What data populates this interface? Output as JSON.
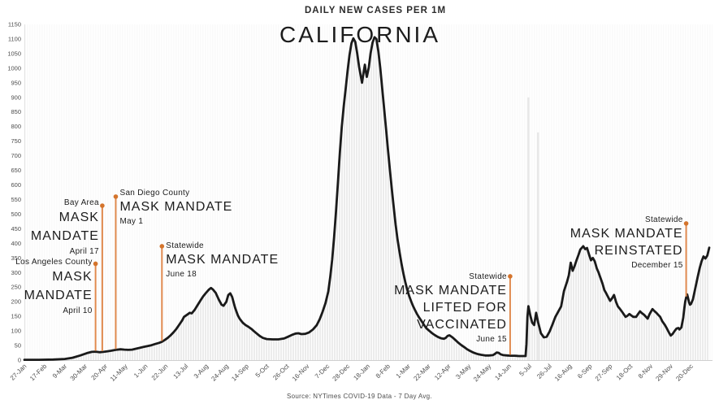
{
  "header": {
    "subtitle": "DAILY NEW CASES PER 1M",
    "title": "CALIFORNIA"
  },
  "source": "Source: NYTimes COVID-19 Data - 7 Day Avg.",
  "colors": {
    "accent_orange_line": "#E08A4F",
    "accent_orange_dot": "#D4742C",
    "curve_black": "#1a1a1a",
    "area_fill_gray": "#ececec",
    "axis_text_gray": "#4d4d4d"
  },
  "chart_data": {
    "type": "line",
    "title": "CALIFORNIA",
    "subtitle": "DAILY NEW CASES PER 1M",
    "ylabel": "",
    "xlabel": "",
    "ylim": [
      0,
      1150
    ],
    "y_ticks": [
      0,
      50,
      100,
      150,
      200,
      250,
      300,
      350,
      400,
      450,
      500,
      550,
      600,
      650,
      700,
      750,
      800,
      850,
      900,
      950,
      1000,
      1050,
      1100,
      1150
    ],
    "x_tick_labels": [
      "27-Jan",
      "17-Feb",
      "9-Mar",
      "30-Mar",
      "20-Apr",
      "11-May",
      "1-Jun",
      "22-Jun",
      "13-Jul",
      "3-Aug",
      "24-Aug",
      "14-Sep",
      "5-Oct",
      "26-Oct",
      "16-Nov",
      "7-Dec",
      "28-Dec",
      "18-Jan",
      "8-Feb",
      "1-Mar",
      "22-Mar",
      "12-Apr",
      "3-May",
      "24-May",
      "14-Jun",
      "5-Jul",
      "26-Jul",
      "16-Aug",
      "6-Sep",
      "27-Sep",
      "18-Oct",
      "8-Nov",
      "29-Nov",
      "20-Dec"
    ],
    "x_tick_interval_days": 21,
    "x_domain_days": [
      0,
      712
    ],
    "grid": false,
    "legend": "none",
    "series": [
      {
        "name": "Daily new cases per 1M (7-day avg)",
        "points": [
          [
            0,
            1
          ],
          [
            15,
            1
          ],
          [
            30,
            2
          ],
          [
            42,
            4
          ],
          [
            50,
            8
          ],
          [
            58,
            16
          ],
          [
            65,
            24
          ],
          [
            70,
            28
          ],
          [
            74,
            29
          ],
          [
            78,
            27
          ],
          [
            82,
            28
          ],
          [
            86,
            30
          ],
          [
            90,
            32
          ],
          [
            95,
            35
          ],
          [
            100,
            37
          ],
          [
            104,
            36
          ],
          [
            108,
            35
          ],
          [
            112,
            36
          ],
          [
            116,
            39
          ],
          [
            120,
            42
          ],
          [
            124,
            45
          ],
          [
            128,
            48
          ],
          [
            132,
            51
          ],
          [
            136,
            55
          ],
          [
            140,
            59
          ],
          [
            143,
            63
          ],
          [
            146,
            69
          ],
          [
            149,
            76
          ],
          [
            152,
            85
          ],
          [
            155,
            95
          ],
          [
            158,
            107
          ],
          [
            161,
            121
          ],
          [
            164,
            136
          ],
          [
            166,
            148
          ],
          [
            169,
            155
          ],
          [
            172,
            162
          ],
          [
            174,
            160
          ],
          [
            177,
            172
          ],
          [
            180,
            188
          ],
          [
            183,
            204
          ],
          [
            186,
            219
          ],
          [
            189,
            231
          ],
          [
            192,
            242
          ],
          [
            194,
            247
          ],
          [
            196,
            242
          ],
          [
            199,
            230
          ],
          [
            202,
            208
          ],
          [
            205,
            190
          ],
          [
            207,
            186
          ],
          [
            210,
            200
          ],
          [
            212,
            223
          ],
          [
            214,
            229
          ],
          [
            216,
            217
          ],
          [
            219,
            180
          ],
          [
            222,
            153
          ],
          [
            224,
            141
          ],
          [
            227,
            128
          ],
          [
            230,
            120
          ],
          [
            233,
            114
          ],
          [
            236,
            107
          ],
          [
            239,
            98
          ],
          [
            242,
            90
          ],
          [
            245,
            82
          ],
          [
            248,
            76
          ],
          [
            252,
            72
          ],
          [
            258,
            71
          ],
          [
            264,
            71
          ],
          [
            270,
            74
          ],
          [
            274,
            80
          ],
          [
            278,
            86
          ],
          [
            282,
            91
          ],
          [
            285,
            92
          ],
          [
            288,
            89
          ],
          [
            292,
            90
          ],
          [
            296,
            95
          ],
          [
            300,
            105
          ],
          [
            304,
            120
          ],
          [
            307,
            140
          ],
          [
            310,
            165
          ],
          [
            313,
            195
          ],
          [
            316,
            235
          ],
          [
            318,
            285
          ],
          [
            320,
            345
          ],
          [
            322,
            420
          ],
          [
            324,
            510
          ],
          [
            326,
            610
          ],
          [
            328,
            710
          ],
          [
            330,
            800
          ],
          [
            332,
            870
          ],
          [
            334,
            930
          ],
          [
            336,
            990
          ],
          [
            338,
            1045
          ],
          [
            340,
            1085
          ],
          [
            342,
            1102
          ],
          [
            344,
            1090
          ],
          [
            346,
            1050
          ],
          [
            348,
            1005
          ],
          [
            350,
            968
          ],
          [
            351,
            950
          ],
          [
            353,
            992
          ],
          [
            354,
            1012
          ],
          [
            355,
            988
          ],
          [
            356,
            970
          ],
          [
            358,
            1002
          ],
          [
            360,
            1052
          ],
          [
            362,
            1088
          ],
          [
            364,
            1106
          ],
          [
            366,
            1100
          ],
          [
            368,
            1058
          ],
          [
            370,
            1000
          ],
          [
            372,
            932
          ],
          [
            374,
            862
          ],
          [
            376,
            792
          ],
          [
            378,
            722
          ],
          [
            380,
            652
          ],
          [
            382,
            585
          ],
          [
            384,
            522
          ],
          [
            386,
            463
          ],
          [
            388,
            412
          ],
          [
            390,
            370
          ],
          [
            392,
            332
          ],
          [
            394,
            297
          ],
          [
            396,
            267
          ],
          [
            398,
            242
          ],
          [
            400,
            220
          ],
          [
            402,
            202
          ],
          [
            404,
            186
          ],
          [
            406,
            172
          ],
          [
            408,
            159
          ],
          [
            410,
            148
          ],
          [
            412,
            138
          ],
          [
            414,
            128
          ],
          [
            416,
            118
          ],
          [
            418,
            109
          ],
          [
            421,
            100
          ],
          [
            424,
            92
          ],
          [
            427,
            85
          ],
          [
            430,
            79
          ],
          [
            433,
            75
          ],
          [
            436,
            73
          ],
          [
            438,
            76
          ],
          [
            440,
            83
          ],
          [
            442,
            85
          ],
          [
            445,
            78
          ],
          [
            448,
            69
          ],
          [
            451,
            60
          ],
          [
            454,
            52
          ],
          [
            457,
            45
          ],
          [
            460,
            38
          ],
          [
            463,
            32
          ],
          [
            466,
            27
          ],
          [
            469,
            23
          ],
          [
            472,
            20
          ],
          [
            475,
            18
          ],
          [
            479,
            16
          ],
          [
            483,
            16
          ],
          [
            487,
            17
          ],
          [
            489,
            21
          ],
          [
            491,
            26
          ],
          [
            493,
            25
          ],
          [
            495,
            20
          ],
          [
            498,
            17
          ],
          [
            502,
            16
          ],
          [
            506,
            15
          ],
          [
            510,
            15
          ],
          [
            514,
            14
          ],
          [
            518,
            14
          ],
          [
            521,
            14
          ],
          [
            522,
            55
          ],
          [
            523,
            148
          ],
          [
            524,
            185
          ],
          [
            526,
            152
          ],
          [
            528,
            128
          ],
          [
            530,
            120
          ],
          [
            532,
            162
          ],
          [
            534,
            130
          ],
          [
            537,
            92
          ],
          [
            540,
            78
          ],
          [
            543,
            80
          ],
          [
            546,
            98
          ],
          [
            549,
            122
          ],
          [
            552,
            148
          ],
          [
            555,
            166
          ],
          [
            558,
            184
          ],
          [
            561,
            237
          ],
          [
            564,
            267
          ],
          [
            566,
            290
          ],
          [
            568,
            334
          ],
          [
            570,
            306
          ],
          [
            572,
            322
          ],
          [
            574,
            342
          ],
          [
            576,
            360
          ],
          [
            578,
            379
          ],
          [
            581,
            390
          ],
          [
            583,
            380
          ],
          [
            585,
            384
          ],
          [
            587,
            362
          ],
          [
            589,
            342
          ],
          [
            591,
            350
          ],
          [
            593,
            338
          ],
          [
            595,
            315
          ],
          [
            597,
            300
          ],
          [
            599,
            281
          ],
          [
            601,
            262
          ],
          [
            603,
            240
          ],
          [
            605,
            228
          ],
          [
            607,
            215
          ],
          [
            609,
            203
          ],
          [
            611,
            212
          ],
          [
            613,
            223
          ],
          [
            615,
            200
          ],
          [
            617,
            184
          ],
          [
            619,
            176
          ],
          [
            621,
            167
          ],
          [
            623,
            158
          ],
          [
            625,
            148
          ],
          [
            627,
            152
          ],
          [
            629,
            158
          ],
          [
            631,
            153
          ],
          [
            633,
            148
          ],
          [
            636,
            148
          ],
          [
            638,
            158
          ],
          [
            640,
            167
          ],
          [
            642,
            161
          ],
          [
            644,
            156
          ],
          [
            646,
            149
          ],
          [
            648,
            142
          ],
          [
            650,
            158
          ],
          [
            653,
            175
          ],
          [
            655,
            168
          ],
          [
            657,
            162
          ],
          [
            659,
            155
          ],
          [
            661,
            148
          ],
          [
            663,
            134
          ],
          [
            666,
            120
          ],
          [
            668,
            108
          ],
          [
            670,
            95
          ],
          [
            672,
            84
          ],
          [
            674,
            90
          ],
          [
            676,
            100
          ],
          [
            678,
            108
          ],
          [
            680,
            110
          ],
          [
            681,
            105
          ],
          [
            683,
            112
          ],
          [
            685,
            145
          ],
          [
            686,
            175
          ],
          [
            687,
            200
          ],
          [
            688,
            215
          ],
          [
            689,
            225
          ],
          [
            690,
            212
          ],
          [
            691,
            198
          ],
          [
            692,
            190
          ],
          [
            693,
            192
          ],
          [
            695,
            208
          ],
          [
            697,
            238
          ],
          [
            700,
            285
          ],
          [
            702,
            315
          ],
          [
            704,
            338
          ],
          [
            706,
            355
          ],
          [
            708,
            348
          ],
          [
            710,
            358
          ],
          [
            712,
            385
          ]
        ]
      }
    ],
    "daily_spike_bars": [
      [
        524,
        900
      ],
      [
        534,
        780
      ]
    ],
    "annotations": [
      {
        "region": "Los Angeles County",
        "title_lines": [
          "MASK",
          "MANDATE"
        ],
        "date_label": "April 10",
        "day": 74,
        "line_top_value": 330
      },
      {
        "region": "Bay Area",
        "title_lines": [
          "MASK",
          "MANDATE"
        ],
        "date_label": "April 17",
        "day": 81,
        "line_top_value": 529
      },
      {
        "region": "San Diego County",
        "title_lines": [
          "MASK MANDATE"
        ],
        "date_label": "May 1",
        "day": 95,
        "line_top_value": 560
      },
      {
        "region": "Statewide",
        "title_lines": [
          "MASK MANDATE"
        ],
        "date_label": "June 18",
        "day": 143,
        "line_top_value": 390
      },
      {
        "region": "Statewide",
        "title_lines": [
          "MASK MANDATE",
          "LIFTED FOR",
          "VACCINATED"
        ],
        "date_label": "June 15",
        "day": 505,
        "line_top_value": 287
      },
      {
        "region": "Statewide",
        "title_lines": [
          "MASK MANDATE",
          "REINSTATED"
        ],
        "date_label": "December 15",
        "day": 688,
        "line_top_value": 468
      }
    ]
  }
}
